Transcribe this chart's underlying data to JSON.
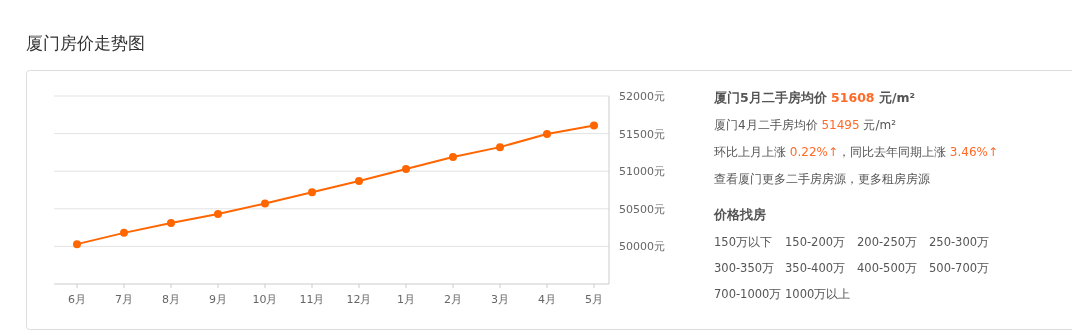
{
  "chart_data": [
    {
      "type": "line",
      "title": "厦门房价走势图",
      "categories": [
        "6月",
        "7月",
        "8月",
        "9月",
        "10月",
        "11月",
        "12月",
        "1月",
        "2月",
        "3月",
        "4月",
        "5月"
      ],
      "series": [
        {
          "color": "#ff6600",
          "values": [
            50030,
            50180,
            50310,
            50430,
            50570,
            50720,
            50870,
            51030,
            51190,
            51320,
            51495,
            51608
          ]
        }
      ],
      "ylim": [
        49500,
        52000
      ],
      "yticks": [
        {
          "value": 50000,
          "label": "50000元"
        },
        {
          "value": 50500,
          "label": "50500元"
        },
        {
          "value": 51000,
          "label": "51000元"
        },
        {
          "value": 51500,
          "label": "51500元"
        },
        {
          "value": 52000,
          "label": "52000元"
        }
      ],
      "grid": "y",
      "marker": "circle"
    },
    {
      "type": "other",
      "annotations": [
        "厦门5月二手房均价 51608 元/m²",
        "厦门4月二手房均价 51495 元/m²",
        "环比上月上涨 0.22%↑，同比去年同期上涨 3.46%↑",
        "查看厦门更多二手房房源，更多租房房源",
        "价格找房",
        "150万以下",
        "150-200万",
        "200-250万",
        "250-300万",
        "300-350万",
        "350-400万",
        "400-500万",
        "500-700万",
        "700-1000万",
        "1000万以上"
      ]
    }
  ]
}
